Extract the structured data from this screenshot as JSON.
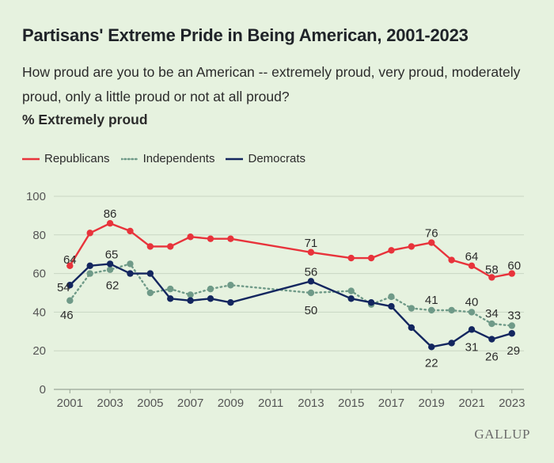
{
  "chart_data": {
    "type": "line",
    "title": "Partisans' Extreme Pride in Being American, 2001-2023",
    "subtitle": "How proud are you to be an American -- extremely proud, very proud, moderately proud, only a little proud or not at all proud?",
    "ylabel": "% Extremely proud",
    "ylim": [
      0,
      100
    ],
    "yticks": [
      0,
      20,
      40,
      60,
      80,
      100
    ],
    "xlim": [
      2000.2,
      2023.6
    ],
    "xticks": [
      2001,
      2003,
      2005,
      2007,
      2009,
      2011,
      2013,
      2015,
      2017,
      2019,
      2021,
      2023
    ],
    "grid": true,
    "legend_position": "top-left",
    "series": [
      {
        "name": "Republicans",
        "color": "#e8333b",
        "style": "solid",
        "points": [
          [
            2001,
            64
          ],
          [
            2002,
            81
          ],
          [
            2003,
            86
          ],
          [
            2004,
            82
          ],
          [
            2005,
            74
          ],
          [
            2006,
            74
          ],
          [
            2007,
            79
          ],
          [
            2008,
            78
          ],
          [
            2009,
            78
          ],
          [
            2013,
            71
          ],
          [
            2015,
            68
          ],
          [
            2016,
            68
          ],
          [
            2017,
            72
          ],
          [
            2018,
            74
          ],
          [
            2019,
            76
          ],
          [
            2020,
            67
          ],
          [
            2021,
            64
          ],
          [
            2022,
            58
          ],
          [
            2023,
            60
          ]
        ]
      },
      {
        "name": "Independents",
        "color": "#6f9a88",
        "style": "dotted",
        "points": [
          [
            2001,
            46
          ],
          [
            2002,
            60
          ],
          [
            2003,
            62
          ],
          [
            2004,
            65
          ],
          [
            2005,
            50
          ],
          [
            2006,
            52
          ],
          [
            2007,
            49
          ],
          [
            2008,
            52
          ],
          [
            2009,
            54
          ],
          [
            2013,
            50
          ],
          [
            2015,
            51
          ],
          [
            2016,
            44
          ],
          [
            2017,
            48
          ],
          [
            2018,
            42
          ],
          [
            2019,
            41
          ],
          [
            2020,
            41
          ],
          [
            2021,
            40
          ],
          [
            2022,
            34
          ],
          [
            2023,
            33
          ]
        ]
      },
      {
        "name": "Democrats",
        "color": "#13265f",
        "style": "solid",
        "points": [
          [
            2001,
            54
          ],
          [
            2002,
            64
          ],
          [
            2003,
            65
          ],
          [
            2004,
            60
          ],
          [
            2005,
            60
          ],
          [
            2006,
            47
          ],
          [
            2007,
            46
          ],
          [
            2008,
            47
          ],
          [
            2009,
            45
          ],
          [
            2013,
            56
          ],
          [
            2015,
            47
          ],
          [
            2016,
            45
          ],
          [
            2017,
            43
          ],
          [
            2018,
            32
          ],
          [
            2019,
            22
          ],
          [
            2020,
            24
          ],
          [
            2021,
            31
          ],
          [
            2022,
            26
          ],
          [
            2023,
            29
          ]
        ]
      }
    ],
    "data_labels": [
      {
        "series": "Republicans",
        "year": 2001,
        "text": "64"
      },
      {
        "series": "Republicans",
        "year": 2003,
        "text": "86"
      },
      {
        "series": "Republicans",
        "year": 2013,
        "text": "71"
      },
      {
        "series": "Republicans",
        "year": 2019,
        "text": "76"
      },
      {
        "series": "Republicans",
        "year": 2021,
        "text": "64"
      },
      {
        "series": "Republicans",
        "year": 2022,
        "text": "58"
      },
      {
        "series": "Republicans",
        "year": 2023,
        "text": "60"
      },
      {
        "series": "Democrats",
        "year": 2001,
        "text": "54"
      },
      {
        "series": "Democrats",
        "year": 2003,
        "text": "65"
      },
      {
        "series": "Democrats",
        "year": 2013,
        "text": "56"
      },
      {
        "series": "Democrats",
        "year": 2019,
        "text": "22"
      },
      {
        "series": "Democrats",
        "year": 2021,
        "text": "31"
      },
      {
        "series": "Democrats",
        "year": 2022,
        "text": "26"
      },
      {
        "series": "Democrats",
        "year": 2023,
        "text": "29"
      },
      {
        "series": "Independents",
        "year": 2001,
        "text": "46"
      },
      {
        "series": "Independents",
        "year": 2003,
        "text": "62"
      },
      {
        "series": "Independents",
        "year": 2013,
        "text": "50"
      },
      {
        "series": "Independents",
        "year": 2019,
        "text": "41"
      },
      {
        "series": "Independents",
        "year": 2021,
        "text": "40"
      },
      {
        "series": "Independents",
        "year": 2022,
        "text": "34"
      },
      {
        "series": "Independents",
        "year": 2023,
        "text": "33"
      }
    ]
  },
  "header": {
    "measure_label": "% Extremely proud"
  },
  "legend": {
    "items": [
      {
        "label": "Republicans"
      },
      {
        "label": "Independents"
      },
      {
        "label": "Democrats"
      }
    ]
  },
  "footer": {
    "brand": "GALLUP"
  },
  "colors": {
    "background": "#e6f2df",
    "grid": "#c9d6c3"
  }
}
